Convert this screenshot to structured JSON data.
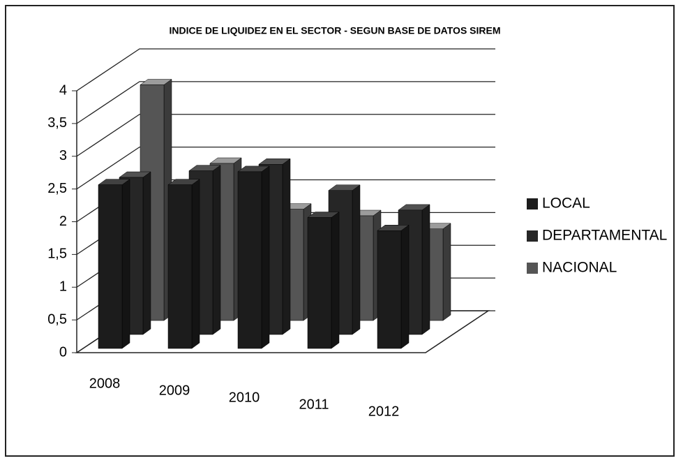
{
  "chart_data": {
    "type": "bar3d",
    "title": "INDICE DE LIQUIDEZ EN EL SECTOR - SEGUN BASE DE DATOS SIREM",
    "categories": [
      "2008",
      "2009",
      "2010",
      "2011",
      "2012"
    ],
    "series": [
      {
        "name": "LOCAL",
        "color": "#1c1c1c",
        "values": [
          2.5,
          2.5,
          2.7,
          2.0,
          1.8
        ]
      },
      {
        "name": "DEPARTAMENTAL",
        "color": "#262626",
        "values": [
          2.4,
          2.5,
          2.6,
          2.2,
          1.9
        ]
      },
      {
        "name": "NACIONAL",
        "color": "#555555",
        "values": [
          3.6,
          2.4,
          1.7,
          1.6,
          1.4
        ]
      }
    ],
    "ylim": [
      0,
      4
    ],
    "yticks": [
      0,
      {
        "value": 0.5,
        "label": "0,5"
      },
      1,
      {
        "value": 1.5,
        "label": "1,5"
      },
      2,
      {
        "value": 2.5,
        "label": "2,5"
      },
      3,
      {
        "value": 3.5,
        "label": "3,5"
      },
      4
    ],
    "grid": true,
    "legend": "right"
  }
}
